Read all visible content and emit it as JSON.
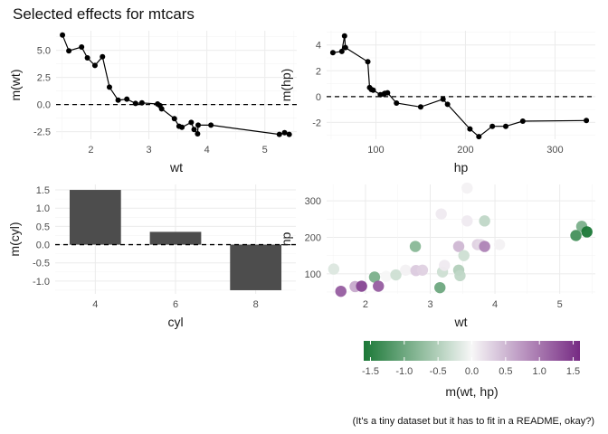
{
  "title": "Selected effects for mtcars",
  "caption": "(It's a tiny dataset but it has to fit in a README, okay?)",
  "colors": {
    "line": "#000000",
    "bar": "#4d4d4d",
    "grid": "#ebebeb",
    "ref_line": "#000000",
    "scale_low": "#1b7837",
    "scale_mid": "#f7f7f7",
    "scale_high": "#762a83"
  },
  "chart_data": [
    {
      "type": "line",
      "panel": "wt",
      "xlabel": "wt",
      "ylabel": "m(wt)",
      "xlim": [
        1.4,
        5.55
      ],
      "ylim": [
        -3.2,
        6.8
      ],
      "xticks": [
        2,
        3,
        4,
        5
      ],
      "yticks": [
        -2.5,
        0.0,
        2.5,
        5.0
      ],
      "ytick_labels": [
        "-2.5",
        "0.0",
        "2.5",
        "5.0"
      ],
      "hline": 0,
      "points": [
        [
          1.51,
          6.4
        ],
        [
          1.62,
          4.95
        ],
        [
          1.84,
          5.3
        ],
        [
          1.94,
          4.3
        ],
        [
          2.07,
          3.6
        ],
        [
          2.2,
          4.4
        ],
        [
          2.32,
          1.6
        ],
        [
          2.47,
          0.4
        ],
        [
          2.62,
          0.5
        ],
        [
          2.77,
          0.1
        ],
        [
          2.88,
          0.15
        ],
        [
          3.15,
          0.05
        ],
        [
          3.19,
          -0.1
        ],
        [
          3.22,
          -0.4
        ],
        [
          3.44,
          -1.3
        ],
        [
          3.52,
          -2.0
        ],
        [
          3.57,
          -2.1
        ],
        [
          3.73,
          -1.65
        ],
        [
          3.78,
          -2.3
        ],
        [
          3.84,
          -2.7
        ],
        [
          3.85,
          -1.9
        ],
        [
          4.07,
          -1.9
        ],
        [
          5.25,
          -2.75
        ],
        [
          5.34,
          -2.6
        ],
        [
          5.42,
          -2.75
        ]
      ]
    },
    {
      "type": "line",
      "panel": "hp",
      "xlabel": "hp",
      "ylabel": "m(hp)",
      "xlim": [
        45,
        345
      ],
      "ylim": [
        -3.3,
        5.1
      ],
      "xticks": [
        100,
        200,
        300
      ],
      "yticks": [
        -2,
        0,
        2,
        4
      ],
      "ytick_labels": [
        "-2",
        "0",
        "2",
        "4"
      ],
      "hline": 0,
      "points": [
        [
          52,
          3.4
        ],
        [
          62,
          3.5
        ],
        [
          65,
          4.7
        ],
        [
          66,
          3.8
        ],
        [
          91,
          2.7
        ],
        [
          93,
          0.7
        ],
        [
          95,
          0.55
        ],
        [
          97,
          0.5
        ],
        [
          105,
          0.15
        ],
        [
          109,
          0.2
        ],
        [
          110,
          0.25
        ],
        [
          113,
          0.3
        ],
        [
          123,
          -0.5
        ],
        [
          150,
          -0.8
        ],
        [
          175,
          -0.2
        ],
        [
          180,
          -0.6
        ],
        [
          205,
          -2.5
        ],
        [
          215,
          -3.1
        ],
        [
          230,
          -2.3
        ],
        [
          245,
          -2.3
        ],
        [
          264,
          -1.9
        ],
        [
          335,
          -1.85
        ]
      ]
    },
    {
      "type": "bar",
      "panel": "cyl",
      "xlabel": "cyl",
      "ylabel": "m(cyl)",
      "categories": [
        "4",
        "6",
        "8"
      ],
      "values": [
        1.5,
        0.35,
        -1.25
      ],
      "ylim": [
        -1.35,
        1.65
      ],
      "yticks": [
        -1.0,
        -0.5,
        0.0,
        0.5,
        1.0,
        1.5
      ],
      "ytick_labels": [
        "-1.0",
        "-0.5",
        "0.0",
        "0.5",
        "1.0",
        "1.5"
      ],
      "hline": 0
    },
    {
      "type": "scatter",
      "panel": "wt_hp",
      "xlabel": "wt",
      "ylabel": "hp",
      "color_label": "m(wt, hp)",
      "xlim": [
        1.4,
        5.55
      ],
      "ylim": [
        45,
        345
      ],
      "xticks": [
        2,
        3,
        4,
        5
      ],
      "yticks": [
        100,
        200,
        300
      ],
      "color_scale": {
        "limits": [
          -1.6,
          1.6
        ],
        "breaks": [
          -1.5,
          -1.0,
          -0.5,
          0.0,
          0.5,
          1.0,
          1.5
        ],
        "break_labels": [
          "-1.5",
          "-1.0",
          "-0.5",
          "0.0",
          "0.5",
          "1.0",
          "1.5"
        ]
      },
      "points": [
        {
          "x": 1.51,
          "y": 113,
          "m": -0.2
        },
        {
          "x": 1.62,
          "y": 52,
          "m": 1.2
        },
        {
          "x": 1.84,
          "y": 65,
          "m": 0.6
        },
        {
          "x": 1.94,
          "y": 66,
          "m": 1.4
        },
        {
          "x": 2.14,
          "y": 91,
          "m": -0.9
        },
        {
          "x": 2.2,
          "y": 66,
          "m": 1.2
        },
        {
          "x": 2.32,
          "y": 93,
          "m": 0.0
        },
        {
          "x": 2.47,
          "y": 97,
          "m": -0.3
        },
        {
          "x": 2.62,
          "y": 110,
          "m": 0.05
        },
        {
          "x": 2.77,
          "y": 175,
          "m": -0.8
        },
        {
          "x": 2.78,
          "y": 109,
          "m": 0.35
        },
        {
          "x": 2.88,
          "y": 110,
          "m": 0.3
        },
        {
          "x": 3.15,
          "y": 62,
          "m": -1.0
        },
        {
          "x": 3.17,
          "y": 264,
          "m": 0.1
        },
        {
          "x": 3.19,
          "y": 105,
          "m": -0.3
        },
        {
          "x": 3.22,
          "y": 123,
          "m": 0.1
        },
        {
          "x": 3.44,
          "y": 175,
          "m": 0.5
        },
        {
          "x": 3.44,
          "y": 110,
          "m": -0.5
        },
        {
          "x": 3.46,
          "y": 95,
          "m": -0.4
        },
        {
          "x": 3.52,
          "y": 150,
          "m": -0.3
        },
        {
          "x": 3.57,
          "y": 335,
          "m": 0.05
        },
        {
          "x": 3.57,
          "y": 245,
          "m": 0.1
        },
        {
          "x": 3.73,
          "y": 180,
          "m": 0.3
        },
        {
          "x": 3.78,
          "y": 180,
          "m": 0.25
        },
        {
          "x": 3.84,
          "y": 245,
          "m": -0.4
        },
        {
          "x": 3.84,
          "y": 175,
          "m": 0.9
        },
        {
          "x": 4.07,
          "y": 180,
          "m": 0.05
        },
        {
          "x": 5.25,
          "y": 205,
          "m": -1.3
        },
        {
          "x": 5.34,
          "y": 230,
          "m": -0.9
        },
        {
          "x": 5.42,
          "y": 215,
          "m": -1.6
        }
      ]
    }
  ]
}
